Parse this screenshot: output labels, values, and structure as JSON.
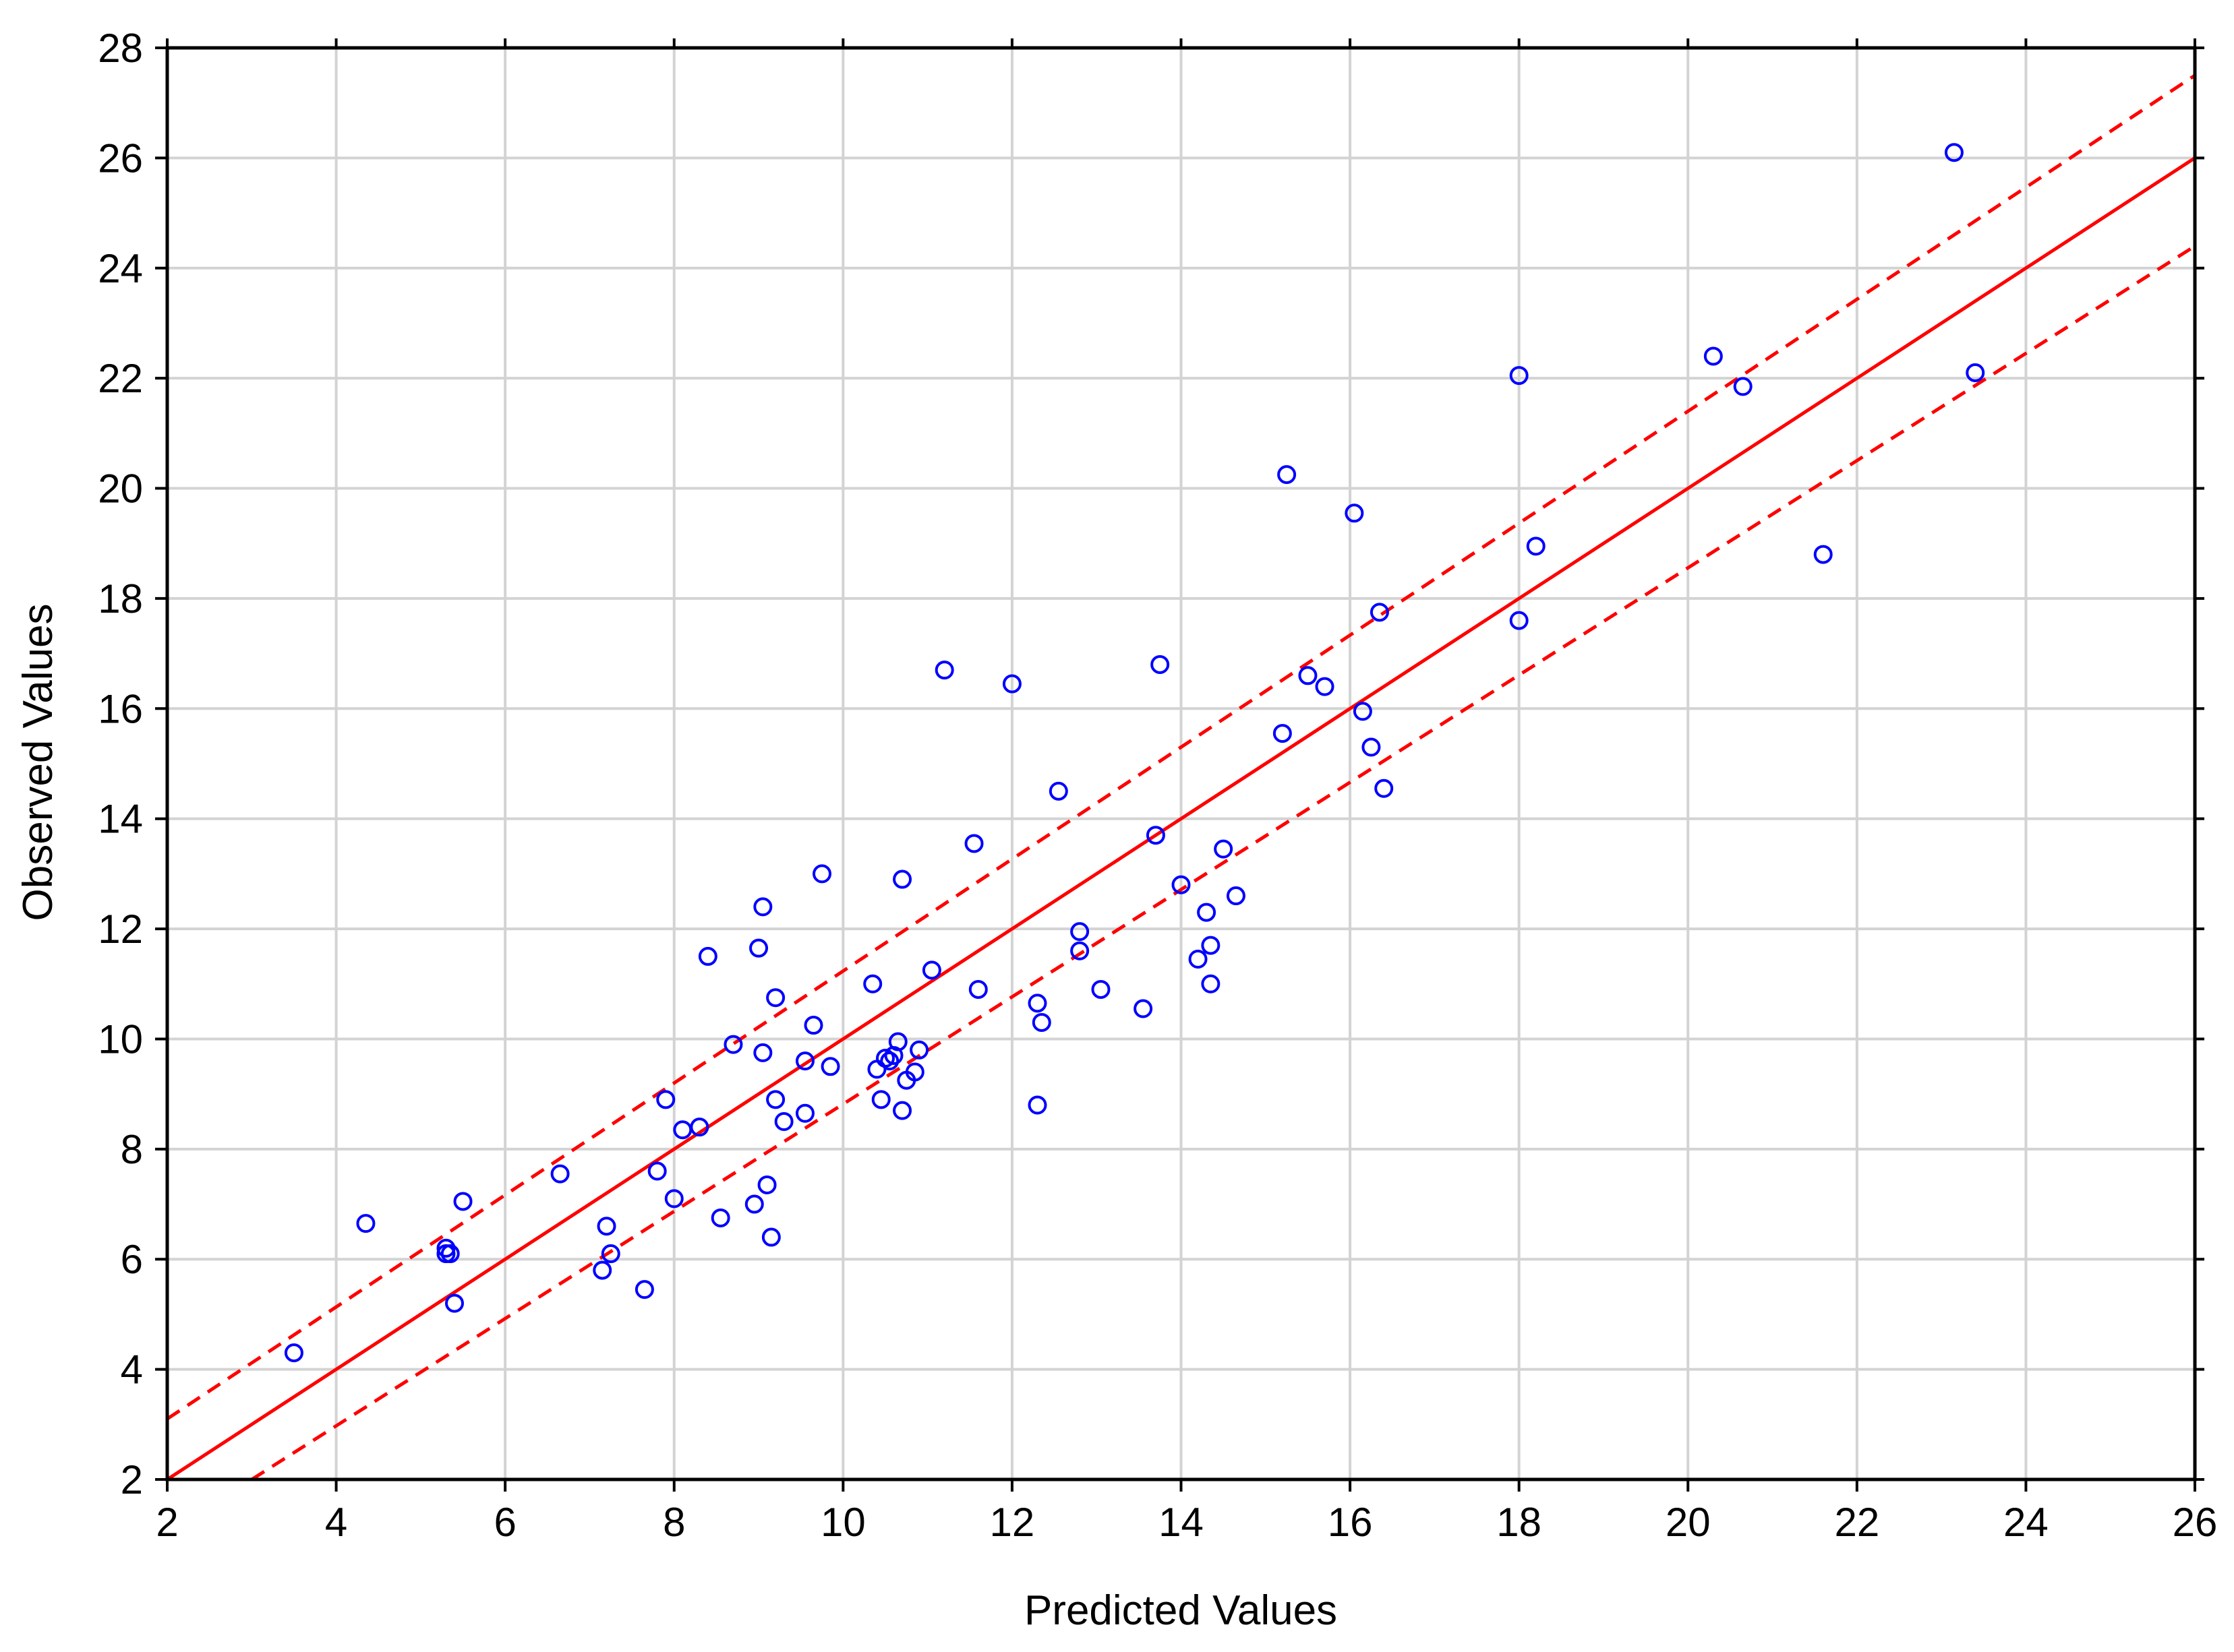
{
  "chart_data": {
    "type": "scatter",
    "xlabel": "Predicted Values",
    "ylabel": "Observed Values",
    "xlim": [
      2,
      26
    ],
    "ylim": [
      2,
      28
    ],
    "xticks": [
      "2",
      "4",
      "6",
      "8",
      "10",
      "12",
      "14",
      "16",
      "18",
      "20",
      "22",
      "24",
      "26"
    ],
    "yticks": [
      "2",
      "4",
      "6",
      "8",
      "10",
      "12",
      "14",
      "16",
      "18",
      "20",
      "22",
      "24",
      "26",
      "28"
    ],
    "grid": true,
    "legend": "none",
    "colors": {
      "points": "#0000ff",
      "fit_line": "#ff0000",
      "confidence_band": "#ff0000",
      "grid": "#d3d3d3",
      "frame": "#000000"
    },
    "fit_line": {
      "slope": 1.0,
      "intercept": 0.0,
      "style": "solid"
    },
    "confidence_band": {
      "style": "dashed",
      "upper": [
        [
          2,
          3.1
        ],
        [
          26,
          27.5
        ]
      ],
      "lower": [
        [
          3.0,
          2.0
        ],
        [
          26,
          24.4
        ]
      ]
    },
    "points": [
      [
        3.5,
        4.3
      ],
      [
        4.35,
        6.65
      ],
      [
        5.3,
        6.2
      ],
      [
        5.35,
        6.1
      ],
      [
        5.3,
        6.1
      ],
      [
        5.4,
        5.2
      ],
      [
        5.5,
        7.05
      ],
      [
        6.65,
        7.55
      ],
      [
        7.15,
        5.8
      ],
      [
        7.2,
        6.6
      ],
      [
        7.25,
        6.1
      ],
      [
        7.65,
        5.45
      ],
      [
        7.8,
        7.6
      ],
      [
        7.9,
        8.9
      ],
      [
        8.0,
        7.1
      ],
      [
        8.1,
        8.35
      ],
      [
        8.3,
        8.4
      ],
      [
        8.4,
        11.5
      ],
      [
        8.55,
        6.75
      ],
      [
        8.7,
        9.9
      ],
      [
        8.95,
        7.0
      ],
      [
        9.0,
        11.65
      ],
      [
        9.05,
        9.75
      ],
      [
        9.1,
        7.35
      ],
      [
        9.05,
        12.4
      ],
      [
        9.15,
        6.4
      ],
      [
        9.2,
        8.9
      ],
      [
        9.2,
        10.75
      ],
      [
        9.3,
        8.5
      ],
      [
        9.55,
        9.6
      ],
      [
        9.55,
        8.65
      ],
      [
        9.65,
        10.25
      ],
      [
        9.75,
        13.0
      ],
      [
        9.85,
        9.5
      ],
      [
        10.35,
        11.0
      ],
      [
        10.4,
        9.45
      ],
      [
        10.45,
        8.9
      ],
      [
        10.5,
        9.65
      ],
      [
        10.55,
        9.6
      ],
      [
        10.6,
        9.7
      ],
      [
        10.65,
        9.95
      ],
      [
        10.7,
        12.9
      ],
      [
        10.7,
        8.7
      ],
      [
        10.75,
        9.25
      ],
      [
        10.85,
        9.4
      ],
      [
        10.9,
        9.8
      ],
      [
        11.05,
        11.25
      ],
      [
        11.2,
        16.7
      ],
      [
        11.55,
        13.55
      ],
      [
        11.6,
        10.9
      ],
      [
        12.0,
        16.45
      ],
      [
        12.3,
        10.65
      ],
      [
        12.3,
        8.8
      ],
      [
        12.35,
        10.3
      ],
      [
        12.55,
        14.5
      ],
      [
        12.8,
        11.95
      ],
      [
        12.8,
        11.6
      ],
      [
        13.05,
        10.9
      ],
      [
        13.55,
        10.55
      ],
      [
        13.7,
        13.7
      ],
      [
        13.75,
        16.8
      ],
      [
        14.0,
        12.8
      ],
      [
        14.2,
        11.45
      ],
      [
        14.3,
        12.3
      ],
      [
        14.35,
        11.7
      ],
      [
        14.35,
        11.0
      ],
      [
        14.5,
        13.45
      ],
      [
        14.65,
        12.6
      ],
      [
        15.2,
        15.55
      ],
      [
        15.25,
        20.25
      ],
      [
        15.5,
        16.6
      ],
      [
        15.7,
        16.4
      ],
      [
        16.05,
        19.55
      ],
      [
        16.15,
        15.95
      ],
      [
        16.25,
        15.3
      ],
      [
        16.35,
        17.75
      ],
      [
        16.4,
        14.55
      ],
      [
        18.0,
        17.6
      ],
      [
        18.0,
        22.05
      ],
      [
        18.2,
        18.95
      ],
      [
        20.3,
        22.4
      ],
      [
        20.65,
        21.85
      ],
      [
        21.6,
        18.8
      ],
      [
        23.15,
        26.1
      ],
      [
        23.4,
        22.1
      ]
    ]
  }
}
